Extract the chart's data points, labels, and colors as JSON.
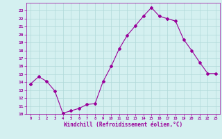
{
  "x": [
    0,
    1,
    2,
    3,
    4,
    5,
    6,
    7,
    8,
    9,
    10,
    11,
    12,
    13,
    14,
    15,
    16,
    17,
    18,
    19,
    20,
    21,
    22,
    23
  ],
  "y": [
    13.8,
    14.7,
    14.1,
    12.9,
    10.1,
    10.4,
    10.7,
    11.2,
    11.3,
    14.1,
    16.0,
    18.2,
    19.9,
    21.1,
    22.3,
    23.4,
    22.3,
    22.0,
    21.7,
    19.4,
    18.0,
    16.5,
    15.1,
    15.1
  ],
  "line_color": "#990099",
  "marker": "D",
  "marker_size": 2,
  "bg_color": "#d4f0f0",
  "grid_color": "#b0d8d8",
  "xlabel": "Windchill (Refroidissement éolien,°C)",
  "xlabel_color": "#990099",
  "tick_color": "#990099",
  "ylim": [
    10,
    24
  ],
  "xlim": [
    -0.5,
    23.5
  ],
  "yticks": [
    10,
    11,
    12,
    13,
    14,
    15,
    16,
    17,
    18,
    19,
    20,
    21,
    22,
    23
  ],
  "xticks": [
    0,
    1,
    2,
    3,
    4,
    5,
    6,
    7,
    8,
    9,
    10,
    11,
    12,
    13,
    14,
    15,
    16,
    17,
    18,
    19,
    20,
    21,
    22,
    23
  ]
}
